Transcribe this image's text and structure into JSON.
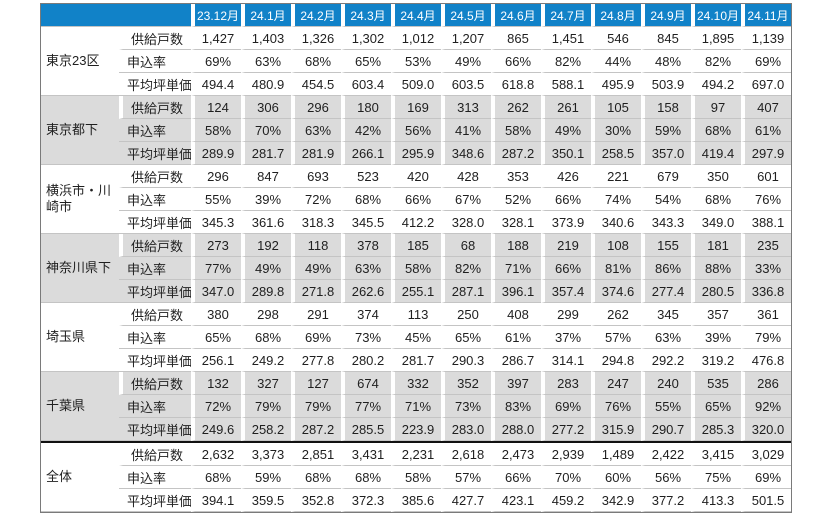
{
  "table": {
    "corner_label": "",
    "months": [
      "23.12月",
      "24.1月",
      "24.2月",
      "24.3月",
      "24.4月",
      "24.5月",
      "24.6月",
      "24.7月",
      "24.8月",
      "24.9月",
      "24.10月",
      "24.11月"
    ],
    "metric_labels": [
      "供給戸数",
      "申込率",
      "平均坪単価"
    ],
    "groups": [
      {
        "name": "東京23区",
        "shaded": false,
        "total": false,
        "rows": [
          {
            "label": "供給戸数",
            "values": [
              "1,427",
              "1,403",
              "1,326",
              "1,302",
              "1,012",
              "1,207",
              "865",
              "1,451",
              "546",
              "845",
              "1,895",
              "1,139"
            ]
          },
          {
            "label": "申込率",
            "values": [
              "69%",
              "63%",
              "68%",
              "65%",
              "53%",
              "49%",
              "66%",
              "82%",
              "44%",
              "48%",
              "82%",
              "69%"
            ]
          },
          {
            "label": "平均坪単価",
            "values": [
              "494.4",
              "480.9",
              "454.5",
              "603.4",
              "509.0",
              "603.5",
              "618.8",
              "588.1",
              "495.9",
              "503.9",
              "494.2",
              "697.0"
            ]
          }
        ]
      },
      {
        "name": "東京都下",
        "shaded": true,
        "total": false,
        "rows": [
          {
            "label": "供給戸数",
            "values": [
              "124",
              "306",
              "296",
              "180",
              "169",
              "313",
              "262",
              "261",
              "105",
              "158",
              "97",
              "407"
            ]
          },
          {
            "label": "申込率",
            "values": [
              "58%",
              "70%",
              "63%",
              "42%",
              "56%",
              "41%",
              "58%",
              "49%",
              "30%",
              "59%",
              "68%",
              "61%"
            ]
          },
          {
            "label": "平均坪単価",
            "values": [
              "289.9",
              "281.7",
              "281.9",
              "266.1",
              "295.9",
              "348.6",
              "287.2",
              "350.1",
              "258.5",
              "357.0",
              "419.4",
              "297.9"
            ]
          }
        ]
      },
      {
        "name": "横浜市・川崎市",
        "shaded": false,
        "total": false,
        "rows": [
          {
            "label": "供給戸数",
            "values": [
              "296",
              "847",
              "693",
              "523",
              "420",
              "428",
              "353",
              "426",
              "221",
              "679",
              "350",
              "601"
            ]
          },
          {
            "label": "申込率",
            "values": [
              "55%",
              "39%",
              "72%",
              "68%",
              "66%",
              "67%",
              "52%",
              "66%",
              "74%",
              "54%",
              "68%",
              "76%"
            ]
          },
          {
            "label": "平均坪単価",
            "values": [
              "345.3",
              "361.6",
              "318.3",
              "345.5",
              "412.2",
              "328.0",
              "328.1",
              "373.9",
              "340.6",
              "343.3",
              "349.0",
              "388.1"
            ]
          }
        ]
      },
      {
        "name": "神奈川県下",
        "shaded": true,
        "total": false,
        "rows": [
          {
            "label": "供給戸数",
            "values": [
              "273",
              "192",
              "118",
              "378",
              "185",
              "68",
              "188",
              "219",
              "108",
              "155",
              "181",
              "235"
            ]
          },
          {
            "label": "申込率",
            "values": [
              "77%",
              "49%",
              "49%",
              "63%",
              "58%",
              "82%",
              "71%",
              "66%",
              "81%",
              "86%",
              "88%",
              "33%"
            ]
          },
          {
            "label": "平均坪単価",
            "values": [
              "347.0",
              "289.8",
              "271.8",
              "262.6",
              "255.1",
              "287.1",
              "396.1",
              "357.4",
              "374.6",
              "277.4",
              "280.5",
              "336.8"
            ]
          }
        ]
      },
      {
        "name": "埼玉県",
        "shaded": false,
        "total": false,
        "rows": [
          {
            "label": "供給戸数",
            "values": [
              "380",
              "298",
              "291",
              "374",
              "113",
              "250",
              "408",
              "299",
              "262",
              "345",
              "357",
              "361"
            ]
          },
          {
            "label": "申込率",
            "values": [
              "65%",
              "68%",
              "69%",
              "73%",
              "45%",
              "65%",
              "61%",
              "37%",
              "57%",
              "63%",
              "39%",
              "79%"
            ]
          },
          {
            "label": "平均坪単価",
            "values": [
              "256.1",
              "249.2",
              "277.8",
              "280.2",
              "281.7",
              "290.3",
              "286.7",
              "314.1",
              "294.8",
              "292.2",
              "319.2",
              "476.8"
            ]
          }
        ]
      },
      {
        "name": "千葉県",
        "shaded": true,
        "total": false,
        "rows": [
          {
            "label": "供給戸数",
            "values": [
              "132",
              "327",
              "127",
              "674",
              "332",
              "352",
              "397",
              "283",
              "247",
              "240",
              "535",
              "286"
            ]
          },
          {
            "label": "申込率",
            "values": [
              "72%",
              "79%",
              "79%",
              "77%",
              "71%",
              "73%",
              "83%",
              "69%",
              "76%",
              "55%",
              "65%",
              "92%"
            ]
          },
          {
            "label": "平均坪単価",
            "values": [
              "249.6",
              "258.2",
              "287.2",
              "285.5",
              "223.9",
              "283.0",
              "288.0",
              "277.2",
              "315.9",
              "290.7",
              "285.3",
              "320.0"
            ]
          }
        ]
      },
      {
        "name": "全体",
        "shaded": false,
        "total": true,
        "rows": [
          {
            "label": "供給戸数",
            "values": [
              "2,632",
              "3,373",
              "2,851",
              "3,431",
              "2,231",
              "2,618",
              "2,473",
              "2,939",
              "1,489",
              "2,422",
              "3,415",
              "3,029"
            ]
          },
          {
            "label": "申込率",
            "values": [
              "68%",
              "59%",
              "68%",
              "68%",
              "58%",
              "57%",
              "66%",
              "70%",
              "60%",
              "56%",
              "75%",
              "69%"
            ]
          },
          {
            "label": "平均坪単価",
            "values": [
              "394.1",
              "359.5",
              "352.8",
              "372.3",
              "385.6",
              "427.7",
              "423.1",
              "459.2",
              "342.9",
              "377.2",
              "413.3",
              "501.5"
            ]
          }
        ]
      }
    ]
  },
  "colors": {
    "header_bg": "#1182c8",
    "header_text": "#ffffff",
    "shaded_band": "#dbdbdb",
    "grid_line": "#c4c4c4",
    "total_separator": "#111111"
  }
}
